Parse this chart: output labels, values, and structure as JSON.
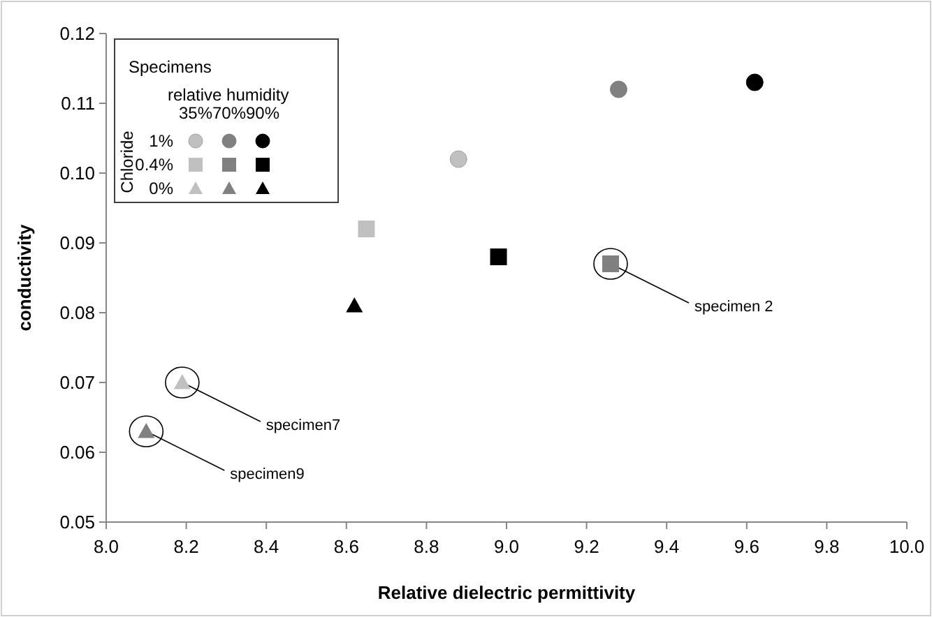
{
  "chart_data": {
    "type": "scatter",
    "xlabel": "Relative dielectric permittivity",
    "ylabel": "conductivity",
    "legend_title": "Specimens",
    "grid": false,
    "xlim": [
      8.0,
      10.0
    ],
    "xticks": [
      {
        "value": 8.0,
        "label": "8.0"
      },
      {
        "value": 8.2,
        "label": "8.2"
      },
      {
        "value": 8.4,
        "label": "8.4"
      },
      {
        "value": 8.6,
        "label": "8.6"
      },
      {
        "value": 8.8,
        "label": "8.8"
      },
      {
        "value": 9.0,
        "label": "9.0"
      },
      {
        "value": 9.2,
        "label": "9.2"
      },
      {
        "value": 9.4,
        "label": "9.4"
      },
      {
        "value": 9.6,
        "label": "9.6"
      },
      {
        "value": 9.8,
        "label": "9.8"
      },
      {
        "value": 10.0,
        "label": "10.0"
      }
    ],
    "ylim": [
      0.05,
      0.12
    ],
    "yticks": [
      {
        "value": 0.05,
        "label": "0.05"
      },
      {
        "value": 0.06,
        "label": "0.06"
      },
      {
        "value": 0.07,
        "label": "0.07"
      },
      {
        "value": 0.08,
        "label": "0.08"
      },
      {
        "value": 0.09,
        "label": "0.09"
      },
      {
        "value": 0.1,
        "label": "0.10"
      },
      {
        "value": 0.11,
        "label": "0.11"
      },
      {
        "value": 0.12,
        "label": "0.12"
      }
    ],
    "series": [
      {
        "color": "#c0c0c0",
        "marker": "circle",
        "x": [
          8.88
        ],
        "values": [
          0.102
        ]
      },
      {
        "color": "#808080",
        "marker": "circle",
        "x": [
          9.28
        ],
        "values": [
          0.112
        ]
      },
      {
        "color": "#000000",
        "marker": "circle",
        "x": [
          9.62
        ],
        "values": [
          0.113
        ]
      },
      {
        "color": "#c0c0c0",
        "marker": "square",
        "x": [
          8.65
        ],
        "values": [
          0.092
        ]
      },
      {
        "color": "#808080",
        "marker": "square",
        "x": [
          9.26
        ],
        "values": [
          0.087
        ]
      },
      {
        "color": "#000000",
        "marker": "square",
        "x": [
          8.98
        ],
        "values": [
          0.088
        ]
      },
      {
        "color": "#c0c0c0",
        "marker": "triangle",
        "x": [
          8.19
        ],
        "values": [
          0.07
        ]
      },
      {
        "color": "#808080",
        "marker": "triangle",
        "x": [
          8.1
        ],
        "values": [
          0.063
        ]
      },
      {
        "color": "#000000",
        "marker": "triangle",
        "x": [
          8.62
        ],
        "values": [
          0.081
        ]
      }
    ],
    "annotations": [
      "relative humidity",
      "35%",
      "70%",
      "90%",
      "Chloride",
      "1%",
      "0.4%",
      "0%",
      {
        "text": "specimen 2",
        "x": 9.26,
        "y": 0.087
      },
      {
        "text": "specimen7",
        "x": 8.19,
        "y": 0.07
      },
      {
        "text": "specimen9",
        "x": 8.1,
        "y": 0.063
      }
    ]
  }
}
